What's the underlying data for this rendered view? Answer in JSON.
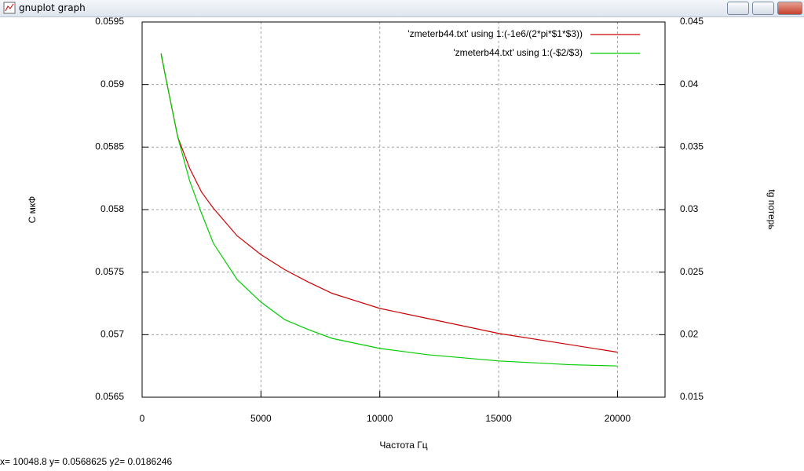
{
  "window": {
    "title": "gnuplot graph"
  },
  "status_bar": "x= 10048.8 y= 0.0568625 y2= 0.0186246",
  "chart_data": {
    "type": "line",
    "x_label": "Частота Гц",
    "y_label": "С мкФ",
    "y2_label": "tg потерь",
    "x": [
      800,
      1000,
      1500,
      2000,
      2500,
      3000,
      4000,
      5000,
      6000,
      7000,
      8000,
      10000,
      12000,
      15000,
      18000,
      20000
    ],
    "series": [
      {
        "name": "'zmeterb44.txt' using 1:(-1e6/(2*pi*$1*$3))",
        "color": "#cc0000",
        "values": [
          0.05924,
          0.05905,
          0.05858,
          0.05833,
          0.05814,
          0.05801,
          0.05779,
          0.05764,
          0.05752,
          0.05742,
          0.05733,
          0.05721,
          0.05713,
          0.05701,
          0.05692,
          0.05686
        ]
      },
      {
        "name": "'zmeterb44.txt' using 1:(-$2/$3)",
        "color": "#00cc00",
        "axis": "y2",
        "values": [
          0.0425,
          0.0405,
          0.0358,
          0.0323,
          0.0297,
          0.0273,
          0.0244,
          0.0226,
          0.0212,
          0.0204,
          0.0197,
          0.0189,
          0.0184,
          0.0179,
          0.0176,
          0.0175
        ]
      }
    ],
    "xlim": [
      0,
      22000
    ],
    "xticks": [
      0,
      5000,
      10000,
      15000,
      20000
    ],
    "ylim": [
      0.0565,
      0.0595
    ],
    "yticks": [
      0.0565,
      0.057,
      0.0575,
      0.058,
      0.0585,
      0.059,
      0.0595
    ],
    "y2lim": [
      0.015,
      0.045
    ],
    "y2ticks": [
      0.015,
      0.02,
      0.025,
      0.03,
      0.035,
      0.04,
      0.045
    ],
    "grid": true,
    "legend": "top-right"
  }
}
